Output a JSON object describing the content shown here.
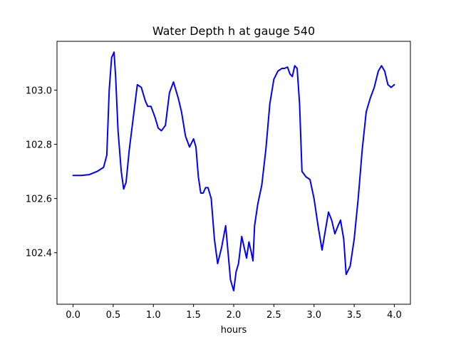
{
  "chart_data": {
    "type": "line",
    "title": "Water Depth h at gauge 540",
    "xlabel": "hours",
    "ylabel": "",
    "xlim": [
      -0.2,
      4.2
    ],
    "ylim": [
      102.21,
      103.18
    ],
    "xticks": [
      {
        "value": 0.0,
        "label": "0.0"
      },
      {
        "value": 0.5,
        "label": "0.5"
      },
      {
        "value": 1.0,
        "label": "1.0"
      },
      {
        "value": 1.5,
        "label": "1.5"
      },
      {
        "value": 2.0,
        "label": "2.0"
      },
      {
        "value": 2.5,
        "label": "2.5"
      },
      {
        "value": 3.0,
        "label": "3.0"
      },
      {
        "value": 3.5,
        "label": "3.5"
      },
      {
        "value": 4.0,
        "label": "4.0"
      }
    ],
    "yticks": [
      {
        "value": 102.4,
        "label": "102.4"
      },
      {
        "value": 102.6,
        "label": "102.6"
      },
      {
        "value": 102.8,
        "label": "102.8"
      },
      {
        "value": 103.0,
        "label": "103.0"
      }
    ],
    "grid": false,
    "series": [
      {
        "color": "#0000ff",
        "x": [
          0.0,
          0.1,
          0.2,
          0.3,
          0.38,
          0.42,
          0.45,
          0.48,
          0.51,
          0.53,
          0.56,
          0.6,
          0.63,
          0.66,
          0.7,
          0.75,
          0.8,
          0.85,
          0.9,
          0.93,
          0.97,
          1.02,
          1.06,
          1.1,
          1.15,
          1.2,
          1.25,
          1.28,
          1.31,
          1.35,
          1.4,
          1.45,
          1.5,
          1.53,
          1.56,
          1.59,
          1.62,
          1.65,
          1.68,
          1.72,
          1.76,
          1.8,
          1.85,
          1.9,
          1.93,
          1.96,
          2.0,
          2.03,
          2.06,
          2.1,
          2.13,
          2.16,
          2.19,
          2.22,
          2.24,
          2.26,
          2.3,
          2.35,
          2.4,
          2.45,
          2.5,
          2.55,
          2.6,
          2.63,
          2.67,
          2.7,
          2.73,
          2.76,
          2.79,
          2.82,
          2.85,
          2.9,
          2.95,
          3.0,
          3.05,
          3.1,
          3.14,
          3.18,
          3.22,
          3.26,
          3.3,
          3.33,
          3.37,
          3.4,
          3.45,
          3.5,
          3.55,
          3.6,
          3.65,
          3.7,
          3.75,
          3.8,
          3.84,
          3.88,
          3.92,
          3.96,
          4.0
        ],
        "y": [
          102.685,
          102.685,
          102.688,
          102.7,
          102.715,
          102.76,
          103.0,
          103.12,
          103.14,
          103.05,
          102.85,
          102.7,
          102.635,
          102.66,
          102.78,
          102.9,
          103.02,
          103.01,
          102.96,
          102.94,
          102.94,
          102.9,
          102.86,
          102.85,
          102.87,
          102.99,
          103.03,
          103.0,
          102.97,
          102.92,
          102.83,
          102.79,
          102.82,
          102.79,
          102.68,
          102.62,
          102.62,
          102.64,
          102.64,
          102.6,
          102.45,
          102.36,
          102.42,
          102.5,
          102.4,
          102.3,
          102.26,
          102.33,
          102.36,
          102.46,
          102.42,
          102.38,
          102.44,
          102.4,
          102.37,
          102.5,
          102.58,
          102.65,
          102.78,
          102.95,
          103.04,
          103.07,
          103.08,
          103.08,
          103.085,
          103.06,
          103.05,
          103.09,
          103.08,
          102.95,
          102.7,
          102.68,
          102.67,
          102.6,
          102.5,
          102.41,
          102.48,
          102.55,
          102.52,
          102.47,
          102.5,
          102.52,
          102.45,
          102.32,
          102.35,
          102.45,
          102.6,
          102.78,
          102.92,
          102.97,
          103.01,
          103.07,
          103.09,
          103.07,
          103.02,
          103.01,
          103.02
        ]
      }
    ]
  }
}
